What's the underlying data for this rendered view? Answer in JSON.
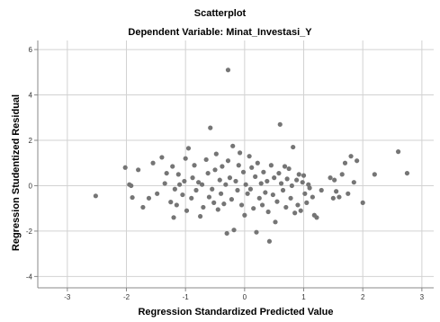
{
  "chart_data": {
    "type": "scatter",
    "title": "Scatterplot",
    "subtitle": "Dependent Variable: Minat_Investasi_Y",
    "xlabel": "Regression Standardized Predicted Value",
    "ylabel": "Regression Studentized Residual",
    "xlim": [
      -3.5,
      3.2
    ],
    "ylim": [
      -4.5,
      6.4
    ],
    "x_ticks": [
      -3,
      -2,
      -1,
      0,
      1,
      2,
      3
    ],
    "x_tick_labels": [
      "-3",
      "-2",
      "-1",
      "0",
      "1",
      "2",
      "3"
    ],
    "y_ticks": [
      -4,
      -2,
      0,
      2,
      4,
      6
    ],
    "y_tick_labels": [
      "-4",
      "-2",
      "0",
      "2",
      "4",
      "6"
    ],
    "grid": true,
    "colors": {
      "point": "#757575",
      "grid": "#d2d2d2",
      "axis": "#888888"
    },
    "points": [
      [
        -2.52,
        -0.45
      ],
      [
        -2.02,
        0.8
      ],
      [
        -1.95,
        0.05
      ],
      [
        -1.92,
        0.0
      ],
      [
        -1.9,
        -0.52
      ],
      [
        -1.8,
        0.7
      ],
      [
        -1.72,
        -0.95
      ],
      [
        -1.62,
        -0.55
      ],
      [
        -1.55,
        1.0
      ],
      [
        -1.48,
        -0.35
      ],
      [
        -1.4,
        1.25
      ],
      [
        -1.32,
        0.55
      ],
      [
        -1.35,
        0.1
      ],
      [
        -1.25,
        -0.72
      ],
      [
        -1.22,
        0.85
      ],
      [
        -1.2,
        -1.4
      ],
      [
        -1.18,
        -0.15
      ],
      [
        -1.15,
        -0.85
      ],
      [
        -1.12,
        0.5
      ],
      [
        -1.1,
        0.05
      ],
      [
        -1.05,
        -0.4
      ],
      [
        -1.02,
        0.2
      ],
      [
        -1.0,
        1.2
      ],
      [
        -0.98,
        -1.1
      ],
      [
        -0.95,
        1.65
      ],
      [
        -0.9,
        -0.55
      ],
      [
        -0.88,
        0.35
      ],
      [
        -0.85,
        0.9
      ],
      [
        -0.82,
        -0.2
      ],
      [
        -0.78,
        0.15
      ],
      [
        -0.75,
        -1.35
      ],
      [
        -0.72,
        0.05
      ],
      [
        -0.7,
        -0.95
      ],
      [
        -0.65,
        1.15
      ],
      [
        -0.62,
        0.55
      ],
      [
        -0.6,
        -0.5
      ],
      [
        -0.58,
        2.55
      ],
      [
        -0.55,
        -0.15
      ],
      [
        -0.52,
        -0.75
      ],
      [
        -0.5,
        0.7
      ],
      [
        -0.48,
        1.4
      ],
      [
        -0.45,
        -1.05
      ],
      [
        -0.42,
        0.25
      ],
      [
        -0.4,
        -0.35
      ],
      [
        -0.38,
        0.85
      ],
      [
        -0.35,
        -0.8
      ],
      [
        -0.32,
        0.05
      ],
      [
        -0.3,
        -2.1
      ],
      [
        -0.28,
        1.1
      ],
      [
        -0.25,
        0.35
      ],
      [
        -0.22,
        -0.6
      ],
      [
        -0.2,
        1.75
      ],
      [
        -0.18,
        -1.95
      ],
      [
        -0.15,
        0.2
      ],
      [
        -0.12,
        -0.2
      ],
      [
        -0.1,
        0.9
      ],
      [
        -0.08,
        1.45
      ],
      [
        -0.05,
        -0.85
      ],
      [
        -0.02,
        0.6
      ],
      [
        0.0,
        -1.3
      ],
      [
        0.02,
        0.05
      ],
      [
        0.05,
        -0.35
      ],
      [
        0.08,
        1.3
      ],
      [
        0.1,
        -0.15
      ],
      [
        0.12,
        0.8
      ],
      [
        0.15,
        -1.0
      ],
      [
        0.18,
        0.4
      ],
      [
        0.2,
        -2.05
      ],
      [
        0.22,
        1.0
      ],
      [
        0.25,
        -0.55
      ],
      [
        0.28,
        0.1
      ],
      [
        0.3,
        -0.85
      ],
      [
        0.32,
        0.6
      ],
      [
        0.35,
        -0.3
      ],
      [
        0.38,
        0.2
      ],
      [
        0.4,
        -1.15
      ],
      [
        0.42,
        -2.45
      ],
      [
        0.45,
        0.9
      ],
      [
        0.48,
        -0.4
      ],
      [
        0.5,
        0.35
      ],
      [
        0.52,
        -1.6
      ],
      [
        0.55,
        -0.7
      ],
      [
        0.58,
        0.55
      ],
      [
        0.6,
        2.7
      ],
      [
        0.62,
        0.1
      ],
      [
        0.65,
        -0.2
      ],
      [
        0.68,
        0.85
      ],
      [
        0.7,
        -0.95
      ],
      [
        0.72,
        0.3
      ],
      [
        0.75,
        0.75
      ],
      [
        0.78,
        -0.55
      ],
      [
        0.8,
        0.0
      ],
      [
        0.82,
        1.7
      ],
      [
        0.85,
        -1.2
      ],
      [
        0.88,
        0.25
      ],
      [
        0.9,
        -0.85
      ],
      [
        0.92,
        0.5
      ],
      [
        0.95,
        -1.1
      ],
      [
        0.98,
        0.15
      ],
      [
        1.0,
        0.45
      ],
      [
        1.02,
        -0.35
      ],
      [
        1.05,
        -0.75
      ],
      [
        1.08,
        0.05
      ],
      [
        1.1,
        -0.1
      ],
      [
        1.15,
        -0.5
      ],
      [
        1.18,
        -1.3
      ],
      [
        1.22,
        -1.4
      ],
      [
        1.3,
        -0.2
      ],
      [
        1.45,
        0.35
      ],
      [
        1.5,
        -0.55
      ],
      [
        1.52,
        0.25
      ],
      [
        1.55,
        -0.25
      ],
      [
        1.6,
        -0.5
      ],
      [
        1.65,
        0.5
      ],
      [
        1.7,
        1.0
      ],
      [
        1.75,
        -0.35
      ],
      [
        1.8,
        1.3
      ],
      [
        1.85,
        0.15
      ],
      [
        1.9,
        1.1
      ],
      [
        2.0,
        -0.75
      ],
      [
        2.2,
        0.5
      ],
      [
        2.6,
        1.5
      ],
      [
        2.75,
        0.55
      ],
      [
        -0.28,
        5.1
      ]
    ]
  }
}
